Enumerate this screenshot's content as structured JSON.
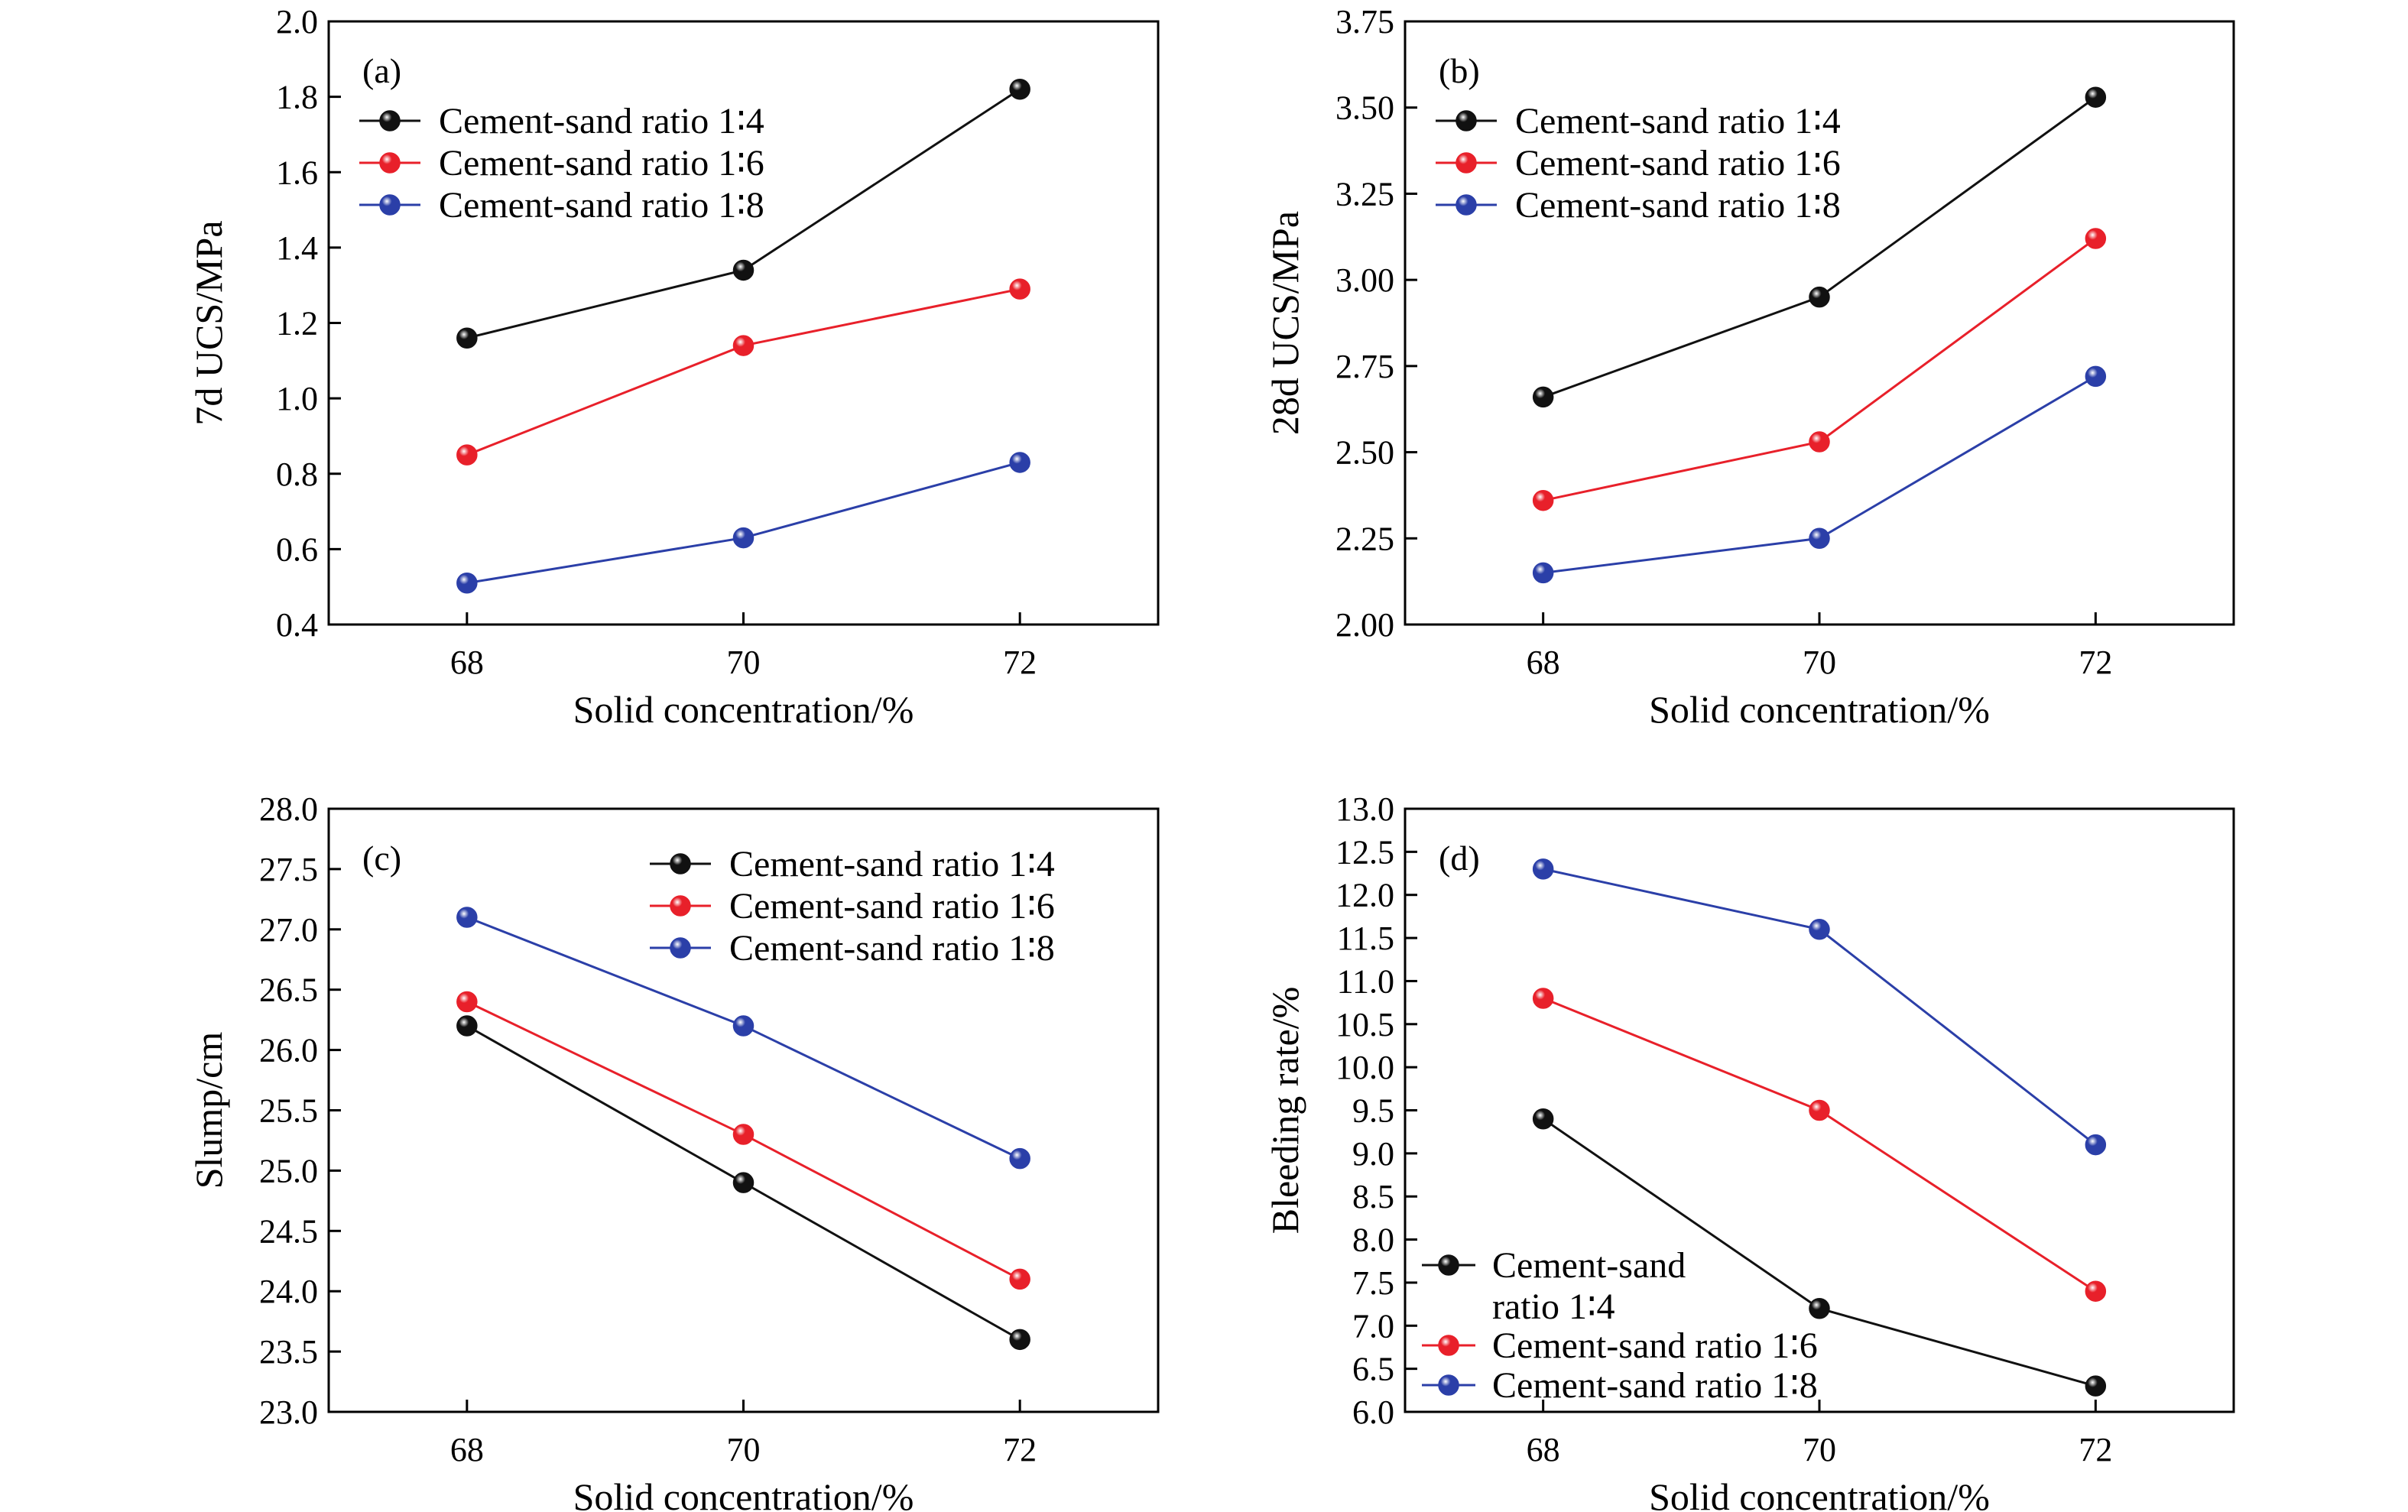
{
  "colors": {
    "series_1_4": "#111111",
    "series_1_6": "#e8202a",
    "series_1_8": "#2b3fa8"
  },
  "chart_data": [
    {
      "type": "line",
      "panel": "(a)",
      "xlabel": "Solid concentration/%",
      "ylabel": "7d UCS/MPa",
      "x": [
        68,
        70,
        72
      ],
      "x_tick_labels": [
        "68",
        "70",
        "72"
      ],
      "xlim": [
        67,
        73
      ],
      "ylim": [
        0.4,
        2.0
      ],
      "y_ticks": [
        0.4,
        0.6,
        0.8,
        1.0,
        1.2,
        1.4,
        1.6,
        1.8,
        2.0
      ],
      "y_tick_labels": [
        "0.4",
        "0.6",
        "0.8",
        "1.0",
        "1.2",
        "1.4",
        "1.6",
        "1.8",
        "2.0"
      ],
      "grid": false,
      "legend_position": "top-left",
      "series": [
        {
          "name": "Cement-sand ratio 1∶4",
          "color": "#111111",
          "values": [
            1.16,
            1.34,
            1.82
          ]
        },
        {
          "name": "Cement-sand ratio 1∶6",
          "color": "#e8202a",
          "values": [
            0.85,
            1.14,
            1.29
          ]
        },
        {
          "name": "Cement-sand ratio 1∶8",
          "color": "#2b3fa8",
          "values": [
            0.51,
            0.63,
            0.83
          ]
        }
      ]
    },
    {
      "type": "line",
      "panel": "(b)",
      "xlabel": "Solid concentration/%",
      "ylabel": "28d UCS/MPa",
      "x": [
        68,
        70,
        72
      ],
      "x_tick_labels": [
        "68",
        "70",
        "72"
      ],
      "xlim": [
        67,
        73
      ],
      "ylim": [
        2.0,
        3.75
      ],
      "y_ticks": [
        2.0,
        2.25,
        2.5,
        2.75,
        3.0,
        3.25,
        3.5,
        3.75
      ],
      "y_tick_labels": [
        "2.00",
        "2.25",
        "2.50",
        "2.75",
        "3.00",
        "3.25",
        "3.50",
        "3.75"
      ],
      "grid": false,
      "legend_position": "top-left",
      "series": [
        {
          "name": "Cement-sand ratio 1∶4",
          "color": "#111111",
          "values": [
            2.66,
            2.95,
            3.53
          ]
        },
        {
          "name": "Cement-sand ratio 1∶6",
          "color": "#e8202a",
          "values": [
            2.36,
            2.53,
            3.12
          ]
        },
        {
          "name": "Cement-sand ratio 1∶8",
          "color": "#2b3fa8",
          "values": [
            2.15,
            2.25,
            2.72
          ]
        }
      ]
    },
    {
      "type": "line",
      "panel": "(c)",
      "xlabel": "Solid concentration/%",
      "ylabel": "Slump/cm",
      "x": [
        68,
        70,
        72
      ],
      "x_tick_labels": [
        "68",
        "70",
        "72"
      ],
      "xlim": [
        67,
        73
      ],
      "ylim": [
        23.0,
        28.0
      ],
      "y_ticks": [
        23.0,
        23.5,
        24.0,
        24.5,
        25.0,
        25.5,
        26.0,
        26.5,
        27.0,
        27.5,
        28.0
      ],
      "y_tick_labels": [
        "23.0",
        "23.5",
        "24.0",
        "24.5",
        "25.0",
        "25.5",
        "26.0",
        "26.5",
        "27.0",
        "27.5",
        "28.0"
      ],
      "grid": false,
      "legend_position": "top-right",
      "series": [
        {
          "name": "Cement-sand ratio 1∶4",
          "color": "#111111",
          "values": [
            26.2,
            24.9,
            23.6
          ]
        },
        {
          "name": "Cement-sand ratio 1∶6",
          "color": "#e8202a",
          "values": [
            26.4,
            25.3,
            24.1
          ]
        },
        {
          "name": "Cement-sand ratio 1∶8",
          "color": "#2b3fa8",
          "values": [
            27.1,
            26.2,
            25.1
          ]
        }
      ]
    },
    {
      "type": "line",
      "panel": "(d)",
      "xlabel": "Solid concentration/%",
      "ylabel": "Bleeding rate/%",
      "x": [
        68,
        70,
        72
      ],
      "x_tick_labels": [
        "68",
        "70",
        "72"
      ],
      "xlim": [
        67,
        73
      ],
      "ylim": [
        6.0,
        13.0
      ],
      "y_ticks": [
        6.0,
        6.5,
        7.0,
        7.5,
        8.0,
        8.5,
        9.0,
        9.5,
        10.0,
        10.5,
        11.0,
        11.5,
        12.0,
        12.5,
        13.0
      ],
      "y_tick_labels": [
        "6.0",
        "6.5",
        "7.0",
        "7.5",
        "8.0",
        "8.5",
        "9.0",
        "9.5",
        "10.0",
        "10.5",
        "11.0",
        "11.5",
        "12.0",
        "12.5",
        "13.0"
      ],
      "grid": false,
      "legend_position": "bottom-left",
      "series": [
        {
          "name": "Cement-sand ratio 1∶4",
          "color": "#111111",
          "values": [
            9.4,
            7.2,
            6.3
          ]
        },
        {
          "name": "Cement-sand ratio 1∶6",
          "color": "#e8202a",
          "values": [
            10.8,
            9.5,
            7.4
          ]
        },
        {
          "name": "Cement-sand ratio 1∶8",
          "color": "#2b3fa8",
          "values": [
            12.3,
            11.6,
            9.1
          ]
        }
      ]
    }
  ]
}
